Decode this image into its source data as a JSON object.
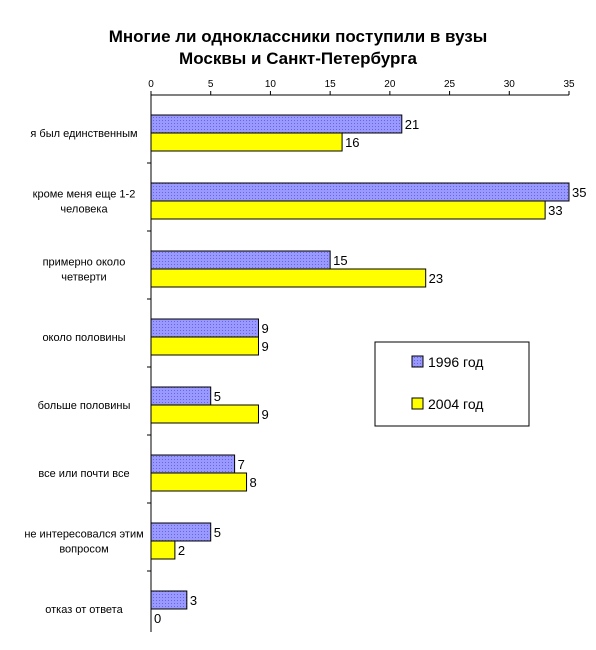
{
  "chart_data": {
    "type": "bar",
    "orientation": "horizontal",
    "title": "Многие ли одноклассники поступили в вузы Москвы и Санкт-Петербурга",
    "title_lines": [
      "Многие ли одноклассники поступили в вузы",
      "Москвы и Санкт-Петербурга"
    ],
    "categories": [
      "я был единственным",
      "кроме меня еще 1-2 человека",
      "примерно около четверти",
      "около половины",
      "больше половины",
      "все или почти все",
      "не интересовался этим вопросом",
      "отказ от ответа"
    ],
    "category_lines": [
      [
        "я был единственным"
      ],
      [
        "кроме меня еще 1-2",
        "человека"
      ],
      [
        "примерно около",
        "четверти"
      ],
      [
        "около половины"
      ],
      [
        "больше половины"
      ],
      [
        "все или почти все"
      ],
      [
        "не интересовался этим",
        "вопросом"
      ],
      [
        "отказ от ответа"
      ]
    ],
    "series": [
      {
        "name": "1996 год",
        "values": [
          21,
          35,
          15,
          9,
          5,
          7,
          5,
          3
        ],
        "color": "#9999ff"
      },
      {
        "name": "2004 год",
        "values": [
          16,
          33,
          23,
          9,
          9,
          8,
          2,
          0
        ],
        "color": "#ffff00"
      }
    ],
    "xlim": [
      0,
      35
    ],
    "x_ticks": [
      "0",
      "5",
      "10",
      "15",
      "20",
      "25",
      "30",
      "35"
    ],
    "x_axis_position": "top",
    "grid": false,
    "legend_position": "right-middle"
  }
}
